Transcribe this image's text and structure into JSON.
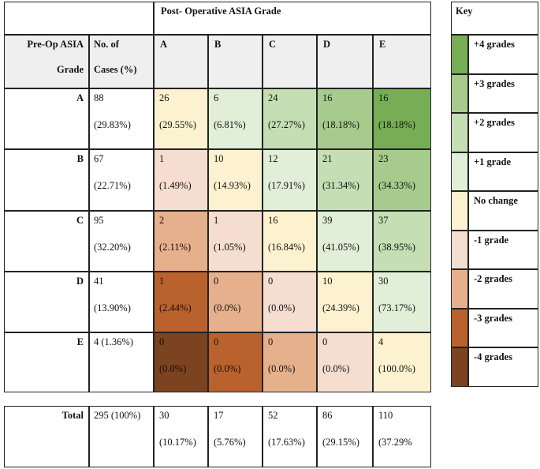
{
  "header": {
    "post_op_title": "Post- Operative ASIA Grade",
    "pre_op_line1": "Pre-Op ASIA",
    "pre_op_line2": "Grade",
    "cases_line1": "No. of",
    "cases_line2": "Cases (%)",
    "grades": [
      "A",
      "B",
      "C",
      "D",
      "E"
    ]
  },
  "rows": [
    {
      "grade": "A",
      "cases_n": "88",
      "cases_pct": "(29.83%)",
      "cells": [
        {
          "n": "26",
          "pct": "(29.55%)",
          "change": 0
        },
        {
          "n": "6",
          "pct": "(6.81%)",
          "change": 1
        },
        {
          "n": "24",
          "pct": "(27.27%)",
          "change": 2
        },
        {
          "n": "16",
          "pct": "(18.18%)",
          "change": 3
        },
        {
          "n": "16",
          "pct": "(18.18%)",
          "change": 4
        }
      ]
    },
    {
      "grade": "B",
      "cases_n": "67",
      "cases_pct": "(22.71%)",
      "cells": [
        {
          "n": "1",
          "pct": "(1.49%)",
          "change": -1
        },
        {
          "n": "10",
          "pct": "(14.93%)",
          "change": 0
        },
        {
          "n": "12",
          "pct": "(17.91%)",
          "change": 1
        },
        {
          "n": "21",
          "pct": "(31.34%)",
          "change": 2
        },
        {
          "n": "23",
          "pct": "(34.33%)",
          "change": 3
        }
      ]
    },
    {
      "grade": "C",
      "cases_n": "95",
      "cases_pct": "(32.20%)",
      "cells": [
        {
          "n": "2",
          "pct": "(2.11%)",
          "change": -2
        },
        {
          "n": "1",
          "pct": "(1.05%)",
          "change": -1
        },
        {
          "n": "16",
          "pct": "(16.84%)",
          "change": 0
        },
        {
          "n": "39",
          "pct": "(41.05%)",
          "change": 1
        },
        {
          "n": "37",
          "pct": "(38.95%)",
          "change": 2
        }
      ]
    },
    {
      "grade": "D",
      "cases_n": "41",
      "cases_pct": "(13.90%)",
      "cells": [
        {
          "n": "1",
          "pct": "(2.44%)",
          "change": -3
        },
        {
          "n": "0",
          "pct": "(0.0%)",
          "change": -2
        },
        {
          "n": "0",
          "pct": "(0.0%)",
          "change": -1
        },
        {
          "n": "10",
          "pct": "(24.39%)",
          "change": 0
        },
        {
          "n": "30",
          "pct": "(73.17%)",
          "change": 1
        }
      ]
    },
    {
      "grade": "E",
      "cases_n": "4 (1.36%)",
      "cases_pct": "",
      "cells": [
        {
          "n": "0",
          "pct": "(0.0%)",
          "change": -4
        },
        {
          "n": "0",
          "pct": "(0.0%)",
          "change": -3
        },
        {
          "n": "0",
          "pct": "(0.0%)",
          "change": -2
        },
        {
          "n": "0",
          "pct": "(0.0%)",
          "change": -1
        },
        {
          "n": "4",
          "pct": "(100.0%)",
          "change": 0
        }
      ]
    }
  ],
  "total": {
    "label": "Total",
    "cases": "295 (100%)",
    "cells": [
      {
        "n": "30",
        "pct": "(10.17%)"
      },
      {
        "n": "17",
        "pct": "(5.76%)"
      },
      {
        "n": "52",
        "pct": "(17.63%)"
      },
      {
        "n": "86",
        "pct": "(29.15%)"
      },
      {
        "n": "110",
        "pct": "(37.29%"
      }
    ]
  },
  "key": {
    "title": "Key",
    "items": [
      {
        "label": "+4 grades",
        "color": "#76ad55"
      },
      {
        "label": "+3 grades",
        "color": "#a6cb8d"
      },
      {
        "label": "+2 grades",
        "color": "#c5deb4"
      },
      {
        "label": "+1 grade",
        "color": "#e1eed8"
      },
      {
        "label": "No change",
        "color": "#fdf2d0"
      },
      {
        "label": "-1 grade",
        "color": "#f5ddd0"
      },
      {
        "label": "-2 grades",
        "color": "#e7b08c"
      },
      {
        "label": "-3 grades",
        "color": "#b9622d"
      },
      {
        "label": "-4 grades",
        "color": "#7b4320"
      }
    ]
  },
  "colors": {
    "header_fill": "#efefef",
    "change_map": {
      "4": "#76ad55",
      "3": "#a6cb8d",
      "2": "#c5deb4",
      "1": "#e1eed8",
      "0": "#fdf2d0",
      "-1": "#f5ddd0",
      "-2": "#e7b08c",
      "-3": "#b9622d",
      "-4": "#7b4320"
    }
  }
}
